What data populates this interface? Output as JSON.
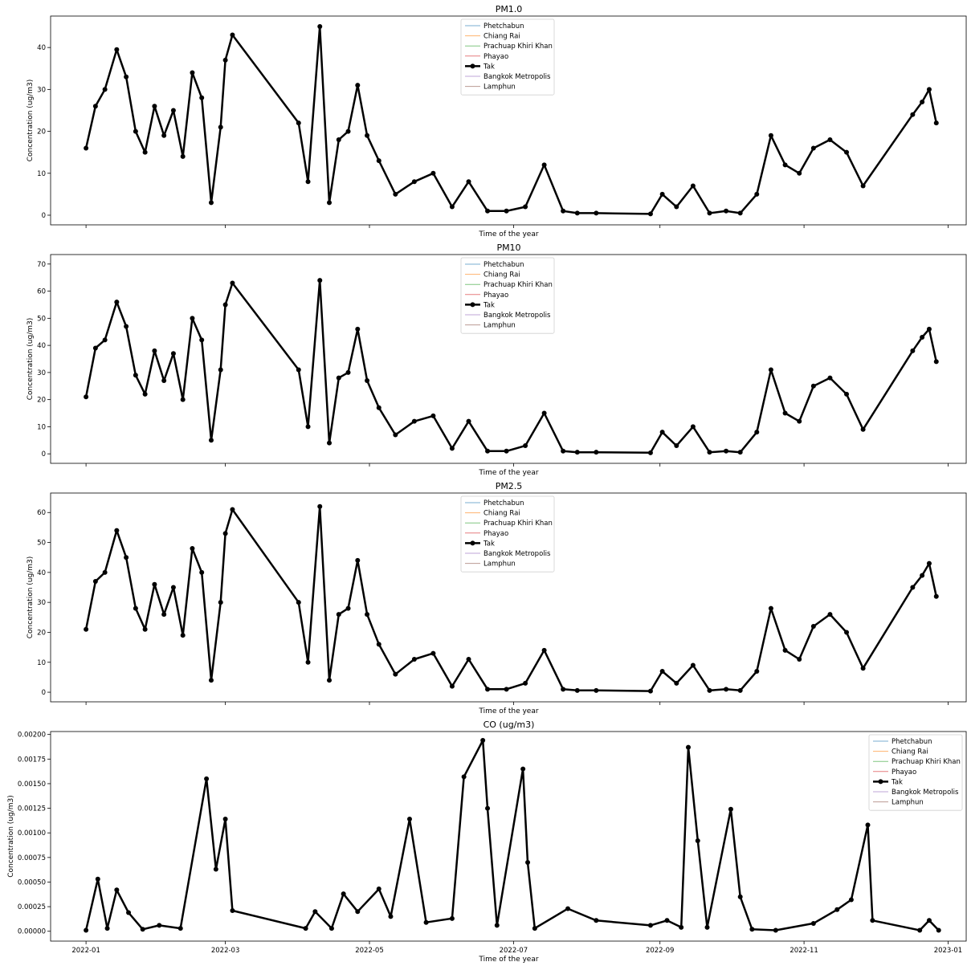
{
  "chart_data": [
    {
      "type": "line",
      "title": "PM1.0",
      "xlabel": "Time of the year",
      "ylabel": "Concentration (ug/m3)",
      "xlim": [
        "2021-12-17",
        "2023-01-09"
      ],
      "ylim": [
        -2.3,
        47.5
      ],
      "yticks": [
        0,
        10,
        20,
        30,
        40
      ],
      "xticks": [
        "2022-01",
        "2022-03",
        "2022-05",
        "2022-07",
        "2022-09",
        "2022-11",
        "2023-01"
      ],
      "legend": "top-center",
      "series": [
        {
          "name": "Phetchabun",
          "color": "#1f77b4",
          "emphasis": false,
          "x": [],
          "y": []
        },
        {
          "name": "Chiang Rai",
          "color": "#ff7f0e",
          "emphasis": false,
          "x": [],
          "y": []
        },
        {
          "name": "Prachuap Khiri Khan",
          "color": "#2ca02c",
          "emphasis": false,
          "x": [],
          "y": []
        },
        {
          "name": "Phayao",
          "color": "#d62728",
          "emphasis": false,
          "x": [],
          "y": []
        },
        {
          "name": "Tak",
          "color": "#000000",
          "emphasis": true,
          "x": [
            "2022-01-01",
            "2022-01-05",
            "2022-01-09",
            "2022-01-14",
            "2022-01-18",
            "2022-01-22",
            "2022-01-26",
            "2022-01-30",
            "2022-02-03",
            "2022-02-07",
            "2022-02-11",
            "2022-02-15",
            "2022-02-19",
            "2022-02-23",
            "2022-02-27",
            "2022-03-01",
            "2022-03-04",
            "2022-04-01",
            "2022-04-05",
            "2022-04-10",
            "2022-04-14",
            "2022-04-18",
            "2022-04-22",
            "2022-04-26",
            "2022-04-30",
            "2022-05-05",
            "2022-05-12",
            "2022-05-20",
            "2022-05-28",
            "2022-06-05",
            "2022-06-12",
            "2022-06-20",
            "2022-06-28",
            "2022-07-06",
            "2022-07-14",
            "2022-07-22",
            "2022-07-28",
            "2022-08-05",
            "2022-08-28",
            "2022-09-02",
            "2022-09-08",
            "2022-09-15",
            "2022-09-22",
            "2022-09-29",
            "2022-10-05",
            "2022-10-12",
            "2022-10-18",
            "2022-10-24",
            "2022-10-30",
            "2022-11-05",
            "2022-11-12",
            "2022-11-19",
            "2022-11-26",
            "2022-12-17",
            "2022-12-21",
            "2022-12-24",
            "2022-12-27"
          ],
          "y": [
            16,
            26,
            30,
            39.5,
            33,
            20,
            15,
            26,
            19,
            25,
            14,
            34,
            28,
            3,
            21,
            37,
            43,
            22,
            8,
            45,
            3,
            18,
            20,
            31,
            19,
            13,
            5,
            8,
            10,
            2,
            8,
            1,
            1,
            2,
            12,
            1,
            0.5,
            0.5,
            0.3,
            5,
            2,
            7,
            0.5,
            1,
            0.5,
            5,
            19,
            12,
            10,
            16,
            18,
            15,
            7,
            24,
            27,
            30,
            22
          ]
        },
        {
          "name": "Bangkok Metropolis",
          "color": "#9467bd",
          "emphasis": false,
          "x": [],
          "y": []
        },
        {
          "name": "Lamphun",
          "color": "#8c564b",
          "emphasis": false,
          "x": [],
          "y": []
        }
      ]
    },
    {
      "type": "line",
      "title": "PM10",
      "xlabel": "Time of the year",
      "ylabel": "Concentration (ug/m3)",
      "xlim": [
        "2021-12-17",
        "2023-01-09"
      ],
      "ylim": [
        -3.5,
        73.5
      ],
      "yticks": [
        0,
        10,
        20,
        30,
        40,
        50,
        60,
        70
      ],
      "xticks": [
        "2022-01",
        "2022-03",
        "2022-05",
        "2022-07",
        "2022-09",
        "2022-11",
        "2023-01"
      ],
      "legend": "top-center",
      "series": [
        {
          "name": "Phetchabun",
          "color": "#1f77b4",
          "emphasis": false,
          "x": [],
          "y": []
        },
        {
          "name": "Chiang Rai",
          "color": "#ff7f0e",
          "emphasis": false,
          "x": [],
          "y": []
        },
        {
          "name": "Prachuap Khiri Khan",
          "color": "#2ca02c",
          "emphasis": false,
          "x": [],
          "y": []
        },
        {
          "name": "Phayao",
          "color": "#d62728",
          "emphasis": false,
          "x": [],
          "y": []
        },
        {
          "name": "Tak",
          "color": "#000000",
          "emphasis": true,
          "x": [
            "2022-01-01",
            "2022-01-05",
            "2022-01-09",
            "2022-01-14",
            "2022-01-18",
            "2022-01-22",
            "2022-01-26",
            "2022-01-30",
            "2022-02-03",
            "2022-02-07",
            "2022-02-11",
            "2022-02-15",
            "2022-02-19",
            "2022-02-23",
            "2022-02-27",
            "2022-03-01",
            "2022-03-04",
            "2022-04-01",
            "2022-04-05",
            "2022-04-10",
            "2022-04-14",
            "2022-04-18",
            "2022-04-22",
            "2022-04-26",
            "2022-04-30",
            "2022-05-05",
            "2022-05-12",
            "2022-05-20",
            "2022-05-28",
            "2022-06-05",
            "2022-06-12",
            "2022-06-20",
            "2022-06-28",
            "2022-07-06",
            "2022-07-14",
            "2022-07-22",
            "2022-07-28",
            "2022-08-05",
            "2022-08-28",
            "2022-09-02",
            "2022-09-08",
            "2022-09-15",
            "2022-09-22",
            "2022-09-29",
            "2022-10-05",
            "2022-10-12",
            "2022-10-18",
            "2022-10-24",
            "2022-10-30",
            "2022-11-05",
            "2022-11-12",
            "2022-11-19",
            "2022-11-26",
            "2022-12-17",
            "2022-12-21",
            "2022-12-24",
            "2022-12-27"
          ],
          "y": [
            21,
            39,
            42,
            56,
            47,
            29,
            22,
            38,
            27,
            37,
            20,
            50,
            42,
            5,
            31,
            55,
            63,
            31,
            10,
            64,
            4,
            28,
            30,
            46,
            27,
            17,
            7,
            12,
            14,
            2,
            12,
            1,
            1,
            3,
            15,
            1,
            0.6,
            0.6,
            0.4,
            8,
            3,
            10,
            0.6,
            1,
            0.6,
            8,
            31,
            15,
            12,
            25,
            28,
            22,
            9,
            38,
            43,
            46,
            34
          ]
        },
        {
          "name": "Bangkok Metropolis",
          "color": "#9467bd",
          "emphasis": false,
          "x": [],
          "y": []
        },
        {
          "name": "Lamphun",
          "color": "#8c564b",
          "emphasis": false,
          "x": [],
          "y": []
        }
      ]
    },
    {
      "type": "line",
      "title": "PM2.5",
      "xlabel": "Time of the year",
      "ylabel": "Concentration (ug/m3)",
      "xlim": [
        "2021-12-17",
        "2023-01-09"
      ],
      "ylim": [
        -3.2,
        66.5
      ],
      "yticks": [
        0,
        10,
        20,
        30,
        40,
        50,
        60
      ],
      "xticks": [
        "2022-01",
        "2022-03",
        "2022-05",
        "2022-07",
        "2022-09",
        "2022-11",
        "2023-01"
      ],
      "legend": "top-center",
      "series": [
        {
          "name": "Phetchabun",
          "color": "#1f77b4",
          "emphasis": false,
          "x": [],
          "y": []
        },
        {
          "name": "Chiang Rai",
          "color": "#ff7f0e",
          "emphasis": false,
          "x": [],
          "y": []
        },
        {
          "name": "Prachuap Khiri Khan",
          "color": "#2ca02c",
          "emphasis": false,
          "x": [],
          "y": []
        },
        {
          "name": "Phayao",
          "color": "#d62728",
          "emphasis": false,
          "x": [],
          "y": []
        },
        {
          "name": "Tak",
          "color": "#000000",
          "emphasis": true,
          "x": [
            "2022-01-01",
            "2022-01-05",
            "2022-01-09",
            "2022-01-14",
            "2022-01-18",
            "2022-01-22",
            "2022-01-26",
            "2022-01-30",
            "2022-02-03",
            "2022-02-07",
            "2022-02-11",
            "2022-02-15",
            "2022-02-19",
            "2022-02-23",
            "2022-02-27",
            "2022-03-01",
            "2022-03-04",
            "2022-04-01",
            "2022-04-05",
            "2022-04-10",
            "2022-04-14",
            "2022-04-18",
            "2022-04-22",
            "2022-04-26",
            "2022-04-30",
            "2022-05-05",
            "2022-05-12",
            "2022-05-20",
            "2022-05-28",
            "2022-06-05",
            "2022-06-12",
            "2022-06-20",
            "2022-06-28",
            "2022-07-06",
            "2022-07-14",
            "2022-07-22",
            "2022-07-28",
            "2022-08-05",
            "2022-08-28",
            "2022-09-02",
            "2022-09-08",
            "2022-09-15",
            "2022-09-22",
            "2022-09-29",
            "2022-10-05",
            "2022-10-12",
            "2022-10-18",
            "2022-10-24",
            "2022-10-30",
            "2022-11-05",
            "2022-11-12",
            "2022-11-19",
            "2022-11-26",
            "2022-12-17",
            "2022-12-21",
            "2022-12-24",
            "2022-12-27"
          ],
          "y": [
            21,
            37,
            40,
            54,
            45,
            28,
            21,
            36,
            26,
            35,
            19,
            48,
            40,
            4,
            30,
            53,
            61,
            30,
            10,
            62,
            4,
            26,
            28,
            44,
            26,
            16,
            6,
            11,
            13,
            2,
            11,
            1,
            1,
            3,
            14,
            1,
            0.6,
            0.6,
            0.4,
            7,
            3,
            9,
            0.6,
            1,
            0.6,
            7,
            28,
            14,
            11,
            22,
            26,
            20,
            8,
            35,
            39,
            43,
            32
          ]
        },
        {
          "name": "Bangkok Metropolis",
          "color": "#9467bd",
          "emphasis": false,
          "x": [],
          "y": []
        },
        {
          "name": "Lamphun",
          "color": "#8c564b",
          "emphasis": false,
          "x": [],
          "y": []
        }
      ]
    },
    {
      "type": "line",
      "title": "CO (ug/m3)",
      "xlabel": "Time of the year",
      "ylabel": "Concentration (ug/m3)",
      "xlim": [
        "2021-12-17",
        "2023-01-09"
      ],
      "ylim": [
        -0.0001,
        0.00203
      ],
      "yticks": [
        0,
        0.00025,
        0.0005,
        0.00075,
        0.001,
        0.00125,
        0.0015,
        0.00175,
        0.002
      ],
      "ytick_labels": [
        "0.00000",
        "0.00025",
        "0.00050",
        "0.00075",
        "0.00100",
        "0.00125",
        "0.00150",
        "0.00175",
        "0.00200"
      ],
      "xticks": [
        "2022-01",
        "2022-03",
        "2022-05",
        "2022-07",
        "2022-09",
        "2022-11",
        "2023-01"
      ],
      "legend": "top-right",
      "series": [
        {
          "name": "Phetchabun",
          "color": "#1f77b4",
          "emphasis": false,
          "x": [],
          "y": []
        },
        {
          "name": "Chiang Rai",
          "color": "#ff7f0e",
          "emphasis": false,
          "x": [],
          "y": []
        },
        {
          "name": "Prachuap Khiri Khan",
          "color": "#2ca02c",
          "emphasis": false,
          "x": [],
          "y": []
        },
        {
          "name": "Phayao",
          "color": "#d62728",
          "emphasis": false,
          "x": [],
          "y": []
        },
        {
          "name": "Tak",
          "color": "#000000",
          "emphasis": true,
          "x": [
            "2022-01-01",
            "2022-01-06",
            "2022-01-10",
            "2022-01-14",
            "2022-01-19",
            "2022-01-25",
            "2022-02-01",
            "2022-02-10",
            "2022-02-21",
            "2022-02-25",
            "2022-03-01",
            "2022-03-04",
            "2022-04-04",
            "2022-04-08",
            "2022-04-15",
            "2022-04-20",
            "2022-04-26",
            "2022-05-05",
            "2022-05-10",
            "2022-05-18",
            "2022-05-25",
            "2022-06-05",
            "2022-06-10",
            "2022-06-18",
            "2022-06-20",
            "2022-06-24",
            "2022-07-05",
            "2022-07-07",
            "2022-07-10",
            "2022-07-24",
            "2022-08-05",
            "2022-08-28",
            "2022-09-04",
            "2022-09-10",
            "2022-09-13",
            "2022-09-17",
            "2022-09-21",
            "2022-10-01",
            "2022-10-05",
            "2022-10-10",
            "2022-10-20",
            "2022-11-05",
            "2022-11-15",
            "2022-11-21",
            "2022-11-28",
            "2022-11-30",
            "2022-12-20",
            "2022-12-24",
            "2022-12-28"
          ],
          "y": [
            1e-05,
            0.00053,
            3e-05,
            0.00042,
            0.00019,
            2e-05,
            6e-05,
            3e-05,
            0.00155,
            0.00063,
            0.00114,
            0.00021,
            3e-05,
            0.0002,
            3e-05,
            0.00038,
            0.0002,
            0.00043,
            0.00015,
            0.00114,
            9e-05,
            0.00013,
            0.00157,
            0.00194,
            0.00125,
            6e-05,
            0.00165,
            0.0007,
            3e-05,
            0.00023,
            0.00011,
            6e-05,
            0.00011,
            4e-05,
            0.00187,
            0.00092,
            4e-05,
            0.00124,
            0.00035,
            2e-05,
            1e-05,
            8e-05,
            0.00022,
            0.00032,
            0.00108,
            0.00011,
            1e-05,
            0.00011,
            1e-05
          ]
        },
        {
          "name": "Bangkok Metropolis",
          "color": "#9467bd",
          "emphasis": false,
          "x": [],
          "y": []
        },
        {
          "name": "Lamphun",
          "color": "#8c564b",
          "emphasis": false,
          "x": [],
          "y": []
        }
      ]
    }
  ]
}
